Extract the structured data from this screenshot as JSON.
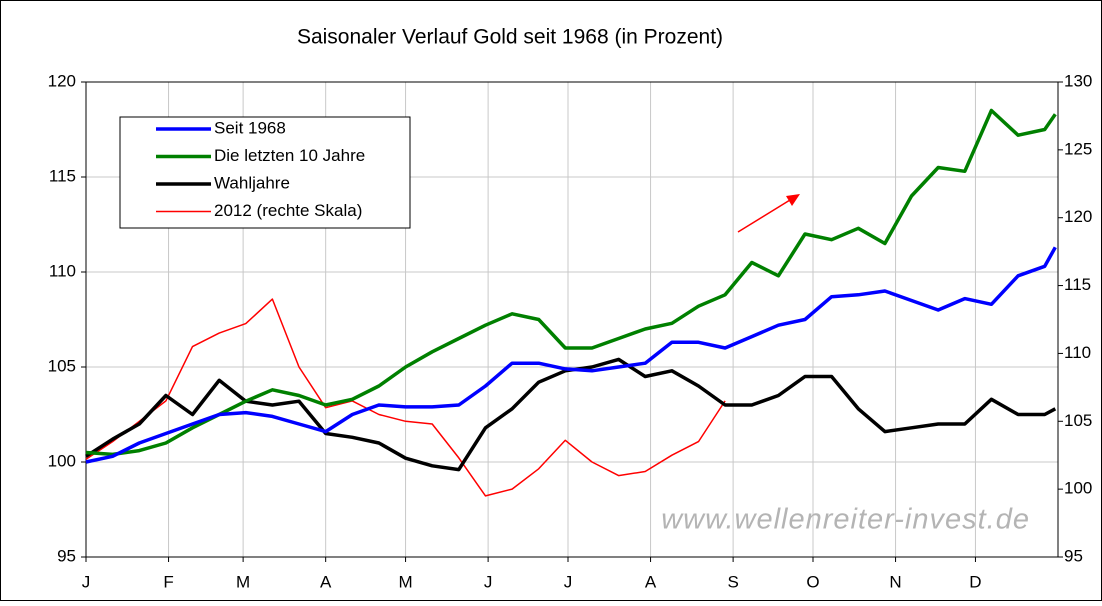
{
  "chart_data": {
    "type": "line",
    "title": "Saisonaler Verlauf Gold seit 1968 (in Prozent)",
    "watermark": "www.wellenreiter-invest.de",
    "x": [
      0,
      10,
      20,
      30,
      40,
      50,
      60,
      70,
      80,
      90,
      100,
      110,
      120,
      130,
      140,
      150,
      160,
      170,
      180,
      190,
      200,
      210,
      220,
      230,
      240,
      250,
      260,
      270,
      280,
      290,
      300,
      310,
      320,
      330,
      340,
      350,
      360,
      364
    ],
    "xlim": [
      0,
      365
    ],
    "xticks": [
      {
        "value": 0,
        "label": "J"
      },
      {
        "value": 31,
        "label": "F"
      },
      {
        "value": 59,
        "label": "M"
      },
      {
        "value": 90,
        "label": "A"
      },
      {
        "value": 120,
        "label": "M"
      },
      {
        "value": 151,
        "label": "J"
      },
      {
        "value": 181,
        "label": "J"
      },
      {
        "value": 212,
        "label": "A"
      },
      {
        "value": 243,
        "label": "S"
      },
      {
        "value": 273,
        "label": "O"
      },
      {
        "value": 304,
        "label": "N"
      },
      {
        "value": 334,
        "label": "D"
      }
    ],
    "ylim": [
      95,
      120
    ],
    "yticks": [
      95,
      100,
      105,
      110,
      115,
      120
    ],
    "y2lim": [
      95,
      130
    ],
    "y2ticks": [
      95,
      100,
      105,
      110,
      115,
      120,
      125,
      130
    ],
    "grid": true,
    "legend": "upper left",
    "series": [
      {
        "name": "Seit 1968",
        "color": "#0000ff",
        "values": [
          100.0,
          100.3,
          101.0,
          101.5,
          102.0,
          102.5,
          102.6,
          102.4,
          102.0,
          101.6,
          102.5,
          103.0,
          102.9,
          102.9,
          103.0,
          104.0,
          105.2,
          105.2,
          104.9,
          104.8,
          105.0,
          105.2,
          106.3,
          106.3,
          106.0,
          106.6,
          107.2,
          107.5,
          108.7,
          108.8,
          109.0,
          108.5,
          108.0,
          108.6,
          108.3,
          109.8,
          110.3,
          111.3
        ]
      },
      {
        "name": "Die letzten 10 Jahre",
        "color": "#008000",
        "values": [
          100.5,
          100.4,
          100.6,
          101.0,
          101.8,
          102.5,
          103.2,
          103.8,
          103.5,
          103.0,
          103.3,
          104.0,
          105.0,
          105.8,
          106.5,
          107.2,
          107.8,
          107.5,
          106.0,
          106.0,
          106.5,
          107.0,
          107.3,
          108.2,
          108.8,
          110.5,
          109.8,
          112.0,
          111.7,
          112.3,
          111.5,
          114.0,
          115.5,
          115.3,
          118.5,
          117.2,
          117.5,
          118.3
        ]
      },
      {
        "name": "Wahljahre",
        "color": "#000000",
        "values": [
          100.3,
          101.2,
          102.0,
          103.5,
          102.5,
          104.3,
          103.2,
          103.0,
          103.2,
          101.5,
          101.3,
          101.0,
          100.2,
          99.8,
          99.6,
          101.8,
          102.8,
          104.2,
          104.8,
          105.0,
          105.4,
          104.5,
          104.8,
          104.0,
          103.0,
          103.0,
          103.5,
          104.5,
          104.5,
          102.8,
          101.6,
          101.8,
          102.0,
          102.0,
          103.3,
          102.5,
          102.5,
          102.8
        ]
      },
      {
        "name": "2012 (rechte Skala)",
        "color": "#ff0000",
        "axis": "y2",
        "values": [
          102.2,
          103.5,
          105.0,
          106.5,
          110.5,
          111.5,
          112.2,
          114.0,
          109.0,
          106.0,
          106.5,
          105.5,
          105.0,
          104.8,
          102.3,
          99.5,
          100.0,
          101.5,
          103.6,
          102.0,
          101.0,
          101.3,
          102.5,
          103.5,
          106.5,
          null,
          null,
          null,
          null,
          null,
          null,
          null,
          null,
          null,
          null,
          null,
          null,
          null
        ]
      }
    ]
  }
}
